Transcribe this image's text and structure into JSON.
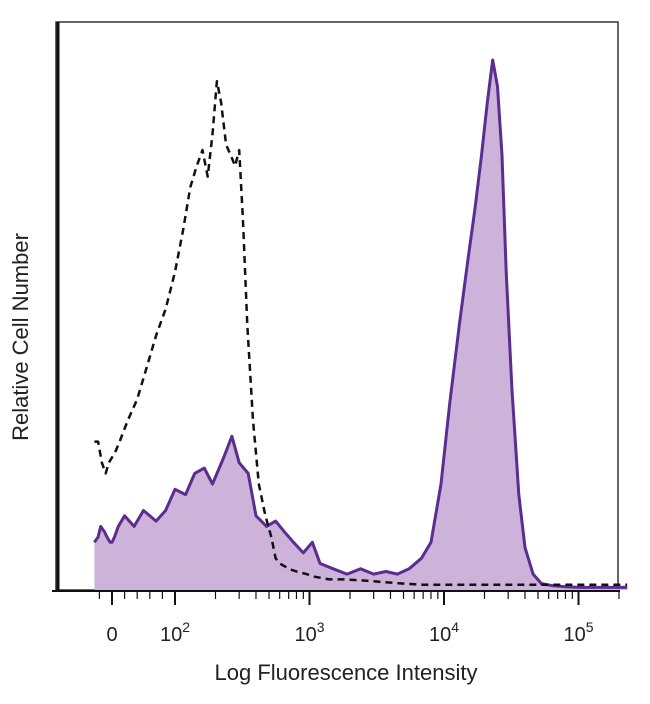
{
  "chart_data": {
    "type": "area",
    "title": "",
    "xlabel": "Log Fluorescence Intensity",
    "ylabel": "Relative Cell Number",
    "x_scale": "biexponential",
    "xlim": [
      -30,
      250000
    ],
    "ylim": [
      0,
      1.0
    ],
    "x_ticks": [
      {
        "value": 0,
        "base": "0",
        "exp": ""
      },
      {
        "value": 100,
        "base": "10",
        "exp": "2"
      },
      {
        "value": 1000,
        "base": "10",
        "exp": "3"
      },
      {
        "value": 10000,
        "base": "10",
        "exp": "4"
      },
      {
        "value": 100000,
        "base": "10",
        "exp": "5"
      }
    ],
    "grid": false,
    "legend": "none",
    "series": [
      {
        "style": "filled-solid",
        "color": "#5b2d90",
        "fill": "#cdb3d9",
        "x": [
          -28,
          -22,
          -18,
          -12,
          -8,
          -3,
          0,
          4,
          10,
          20,
          35,
          50,
          70,
          85,
          100,
          120,
          140,
          165,
          190,
          230,
          265,
          300,
          350,
          400,
          480,
          560,
          650,
          760,
          900,
          1050,
          1200,
          1500,
          1900,
          2400,
          3000,
          3700,
          4500,
          5500,
          6800,
          8000,
          9500,
          11000,
          13000,
          15000,
          17000,
          19000,
          21000,
          23000,
          25000,
          27000,
          29000,
          32000,
          36000,
          40000,
          46000,
          53000,
          65000,
          80000,
          100000,
          150000,
          230000
        ],
        "y": [
          0.09,
          0.1,
          0.12,
          0.11,
          0.1,
          0.09,
          0.09,
          0.1,
          0.12,
          0.14,
          0.12,
          0.15,
          0.13,
          0.15,
          0.19,
          0.18,
          0.22,
          0.23,
          0.2,
          0.25,
          0.29,
          0.24,
          0.22,
          0.14,
          0.12,
          0.13,
          0.11,
          0.09,
          0.07,
          0.09,
          0.05,
          0.04,
          0.03,
          0.04,
          0.03,
          0.035,
          0.03,
          0.04,
          0.06,
          0.09,
          0.2,
          0.35,
          0.5,
          0.62,
          0.72,
          0.82,
          0.92,
          1.0,
          0.95,
          0.82,
          0.6,
          0.38,
          0.18,
          0.08,
          0.03,
          0.012,
          0.008,
          0.006,
          0.005,
          0.005,
          0.005
        ]
      },
      {
        "style": "dashed",
        "color": "#111111",
        "x": [
          -28,
          -22,
          -16,
          -10,
          -5,
          0,
          5,
          12,
          25,
          40,
          55,
          70,
          85,
          100,
          115,
          130,
          145,
          160,
          175,
          190,
          205,
          220,
          240,
          260,
          280,
          300,
          320,
          345,
          380,
          420,
          470,
          520,
          560,
          600,
          650,
          700,
          800,
          950,
          1100,
          1400,
          1800,
          2500,
          3500,
          5000,
          7000,
          10000,
          15000,
          25000,
          40000,
          80000,
          230000
        ],
        "y": [
          0.28,
          0.28,
          0.24,
          0.22,
          0.24,
          0.25,
          0.26,
          0.28,
          0.32,
          0.36,
          0.42,
          0.48,
          0.53,
          0.6,
          0.68,
          0.76,
          0.8,
          0.83,
          0.78,
          0.86,
          0.96,
          0.92,
          0.84,
          0.82,
          0.8,
          0.83,
          0.7,
          0.5,
          0.32,
          0.2,
          0.14,
          0.1,
          0.06,
          0.05,
          0.045,
          0.04,
          0.035,
          0.03,
          0.025,
          0.02,
          0.02,
          0.018,
          0.015,
          0.012,
          0.01,
          0.01,
          0.01,
          0.01,
          0.01,
          0.01,
          0.01
        ]
      }
    ]
  }
}
